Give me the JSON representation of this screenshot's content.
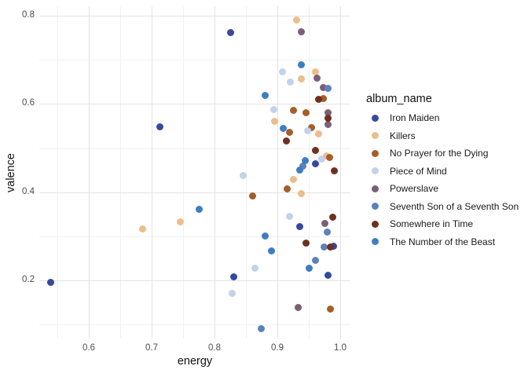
{
  "chart": {
    "xlabel": "energy",
    "ylabel": "valence",
    "legend_title": "album_name"
  },
  "chart_data": {
    "type": "scatter",
    "title": "",
    "xlabel": "energy",
    "ylabel": "valence",
    "legend_title": "album_name",
    "legend_position": "right",
    "grid": "major+minor",
    "background": "#ffffff",
    "major_grid_color": "#e3e3e3",
    "minor_grid_color": "#f1f1f1",
    "x_range": [
      0.521,
      1.016
    ],
    "y_range": [
      0.068,
      0.821
    ],
    "x_ticks": [
      {
        "value": 0.6,
        "label": "0.6"
      },
      {
        "value": 0.7,
        "label": "0.7"
      },
      {
        "value": 0.8,
        "label": "0.8"
      },
      {
        "value": 0.9,
        "label": "0.9"
      },
      {
        "value": 1.0,
        "label": "1.0"
      }
    ],
    "x_minor_ticks": [
      0.55,
      0.65,
      0.75,
      0.85,
      0.95
    ],
    "y_ticks": [
      {
        "value": 0.8,
        "label": "0.8"
      },
      {
        "value": 0.6,
        "label": "0.6"
      },
      {
        "value": 0.4,
        "label": "0.4"
      },
      {
        "value": 0.2,
        "label": "0.2"
      }
    ],
    "y_minor_ticks": [
      0.7,
      0.5,
      0.3,
      0.1
    ],
    "series": [
      {
        "name": "Iron Maiden",
        "color": "#37499E",
        "points": [
          [
            0.539,
            0.195
          ],
          [
            0.713,
            0.548
          ],
          [
            0.825,
            0.762
          ],
          [
            0.96,
            0.464
          ],
          [
            0.935,
            0.322
          ],
          [
            0.989,
            0.278
          ],
          [
            0.981,
            0.212
          ],
          [
            0.83,
            0.209
          ]
        ]
      },
      {
        "name": "Killers",
        "color": "#EBBE8C",
        "points": [
          [
            0.93,
            0.79
          ],
          [
            0.96,
            0.672
          ],
          [
            0.938,
            0.656
          ],
          [
            0.895,
            0.561
          ],
          [
            0.965,
            0.532
          ],
          [
            0.978,
            0.483
          ],
          [
            0.925,
            0.429
          ],
          [
            0.938,
            0.396
          ],
          [
            0.746,
            0.332
          ],
          [
            0.686,
            0.316
          ]
        ]
      },
      {
        "name": "No Prayer for the Dying",
        "color": "#A55E28",
        "points": [
          [
            0.973,
            0.613
          ],
          [
            0.926,
            0.585
          ],
          [
            0.945,
            0.581
          ],
          [
            0.954,
            0.547
          ],
          [
            0.919,
            0.536
          ],
          [
            0.983,
            0.478
          ],
          [
            0.915,
            0.408
          ],
          [
            0.861,
            0.392
          ],
          [
            0.984,
            0.136
          ]
        ]
      },
      {
        "name": "Piece of Mind",
        "color": "#C3D2E9",
        "points": [
          [
            0.908,
            0.672
          ],
          [
            0.921,
            0.649
          ],
          [
            0.894,
            0.588
          ],
          [
            0.948,
            0.539
          ],
          [
            0.971,
            0.476
          ],
          [
            0.845,
            0.438
          ],
          [
            0.919,
            0.345
          ],
          [
            0.864,
            0.227
          ],
          [
            0.828,
            0.171
          ]
        ]
      },
      {
        "name": "Powerslave",
        "color": "#7D5D78",
        "points": [
          [
            0.938,
            0.763
          ],
          [
            0.963,
            0.658
          ],
          [
            0.973,
            0.638
          ],
          [
            0.98,
            0.581
          ],
          [
            0.98,
            0.553
          ],
          [
            0.975,
            0.33
          ],
          [
            0.933,
            0.139
          ]
        ]
      },
      {
        "name": "Seventh Son of a Seventh Son",
        "color": "#5D81BA",
        "points": [
          [
            0.981,
            0.636
          ],
          [
            0.94,
            0.46
          ],
          [
            0.979,
            0.309
          ],
          [
            0.974,
            0.275
          ],
          [
            0.96,
            0.246
          ],
          [
            0.874,
            0.091
          ]
        ]
      },
      {
        "name": "Somewhere in Time",
        "color": "#6D3120",
        "points": [
          [
            0.965,
            0.611
          ],
          [
            0.981,
            0.567
          ],
          [
            0.914,
            0.517
          ],
          [
            0.96,
            0.494
          ],
          [
            0.991,
            0.449
          ],
          [
            0.988,
            0.344
          ],
          [
            0.945,
            0.285
          ],
          [
            0.984,
            0.276
          ]
        ]
      },
      {
        "name": "The Number of the Beast",
        "color": "#3E7DC4",
        "points": [
          [
            0.938,
            0.688
          ],
          [
            0.881,
            0.62
          ],
          [
            0.909,
            0.545
          ],
          [
            0.944,
            0.472
          ],
          [
            0.936,
            0.45
          ],
          [
            0.776,
            0.362
          ],
          [
            0.881,
            0.3
          ],
          [
            0.89,
            0.266
          ],
          [
            0.95,
            0.228
          ]
        ]
      }
    ]
  }
}
